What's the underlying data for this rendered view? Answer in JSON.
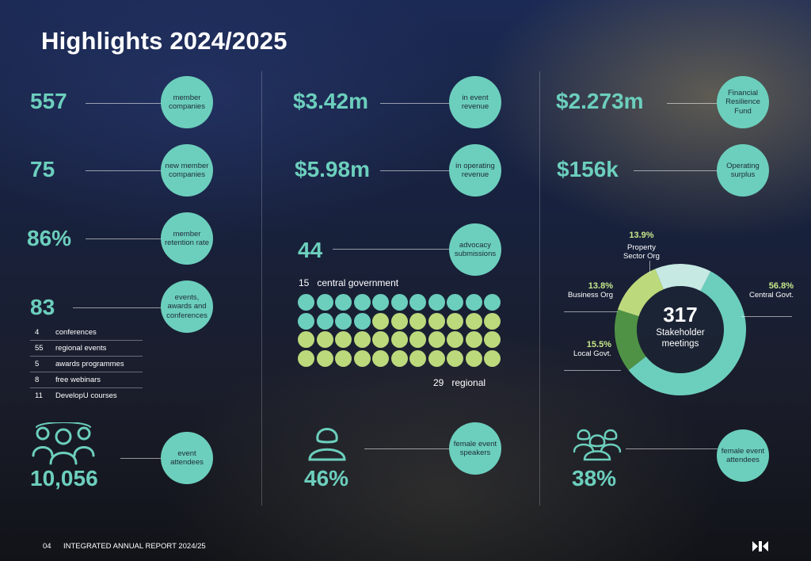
{
  "title": "Highlights 2024/2025",
  "colors": {
    "accent": "#6ccfbd",
    "lime": "#bcd97c",
    "dark_green": "#4f9245",
    "pale": "#c6e9e4"
  },
  "left": {
    "stats": [
      {
        "value": "557",
        "label": "member companies"
      },
      {
        "value": "75",
        "label": "new member companies"
      },
      {
        "value": "86%",
        "label": "member retention rate"
      },
      {
        "value": "83",
        "label": "events, awards and conferences"
      }
    ],
    "events_breakdown": [
      {
        "count": "4",
        "label": "conferences"
      },
      {
        "count": "55",
        "label": "regional events"
      },
      {
        "count": "5",
        "label": "awards programmes"
      },
      {
        "count": "8",
        "label": "free webinars"
      },
      {
        "count": "11",
        "label": "DevelopU courses"
      }
    ],
    "attendees": {
      "value": "10,056",
      "label": "event attendees",
      "icon": "people-group-icon"
    }
  },
  "middle": {
    "stats": [
      {
        "value": "$3.42m",
        "label": "in event revenue"
      },
      {
        "value": "$5.98m",
        "label": "in operating revenue"
      },
      {
        "value": "44",
        "label": "advocacy submissions"
      }
    ],
    "submissions": {
      "central_count": "15",
      "central_label": "central government",
      "regional_count": "29",
      "regional_label": "regional",
      "central_dots": 15,
      "regional_dots": 29
    },
    "speakers": {
      "value": "46%",
      "label": "female event speakers",
      "icon": "female-person-icon"
    }
  },
  "right": {
    "stats": [
      {
        "value": "$2.273m",
        "label": "Financial Resilience Fund"
      },
      {
        "value": "$156k",
        "label": "Operating surplus"
      }
    ],
    "attendees": {
      "value": "38%",
      "label": "female event attendees",
      "icon": "female-group-icon"
    }
  },
  "chart_data": {
    "type": "pie",
    "center_value": "317",
    "center_label": "Stakeholder meetings",
    "slices": [
      {
        "label": "Central Govt.",
        "value": 56.8,
        "pct": "56.8%",
        "color": "#6ccfbd"
      },
      {
        "label": "Local Govt.",
        "value": 15.5,
        "pct": "15.5%",
        "color": "#4f9245"
      },
      {
        "label": "Business Org",
        "value": 13.8,
        "pct": "13.8%",
        "color": "#bcd97c"
      },
      {
        "label": "Property Sector Org",
        "value": 13.9,
        "pct": "13.9%",
        "color": "#c6e9e4"
      }
    ]
  },
  "footer": {
    "page": "04",
    "report": "INTEGRATED ANNUAL REPORT 2024/25",
    "logo_icon": "brand-logo-icon"
  }
}
